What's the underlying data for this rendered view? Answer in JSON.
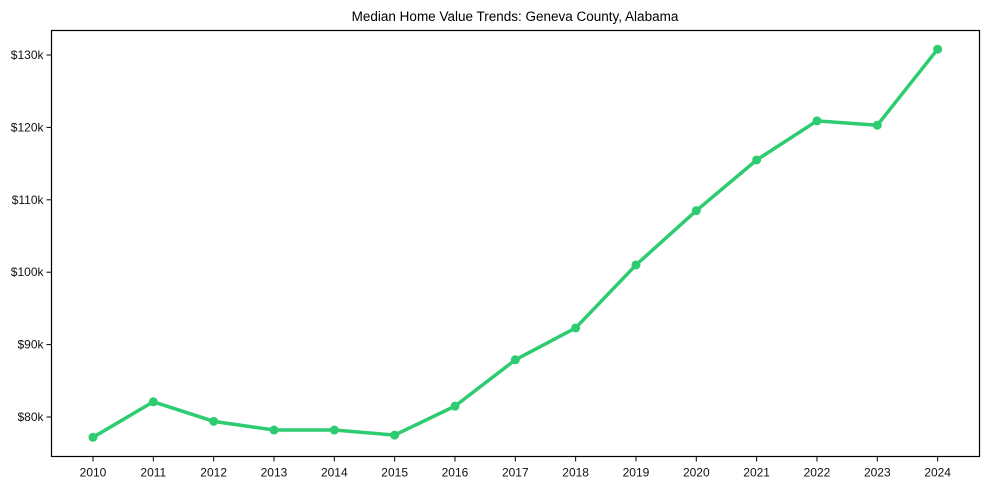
{
  "chart_data": {
    "type": "line",
    "title": "Median Home Value Trends: Geneva County, Alabama",
    "xlabel": "",
    "ylabel": "",
    "categories": [
      "2010",
      "2011",
      "2012",
      "2013",
      "2014",
      "2015",
      "2016",
      "2017",
      "2018",
      "2019",
      "2020",
      "2021",
      "2022",
      "2023",
      "2024"
    ],
    "series": [
      {
        "name": "Median Home Value",
        "color": "#2ecc71",
        "values": [
          77200,
          82100,
          79400,
          78200,
          78200,
          77500,
          81500,
          87900,
          92300,
          101000,
          108500,
          115500,
          120900,
          120300,
          130800
        ]
      }
    ],
    "y_ticks": [
      80000,
      90000,
      100000,
      110000,
      120000,
      130000
    ],
    "y_tick_labels": [
      "$80k",
      "$90k",
      "$100k",
      "$110k",
      "$120k",
      "$130k"
    ],
    "ylim": [
      74700,
      133700
    ],
    "grid": false,
    "legend": null
  }
}
